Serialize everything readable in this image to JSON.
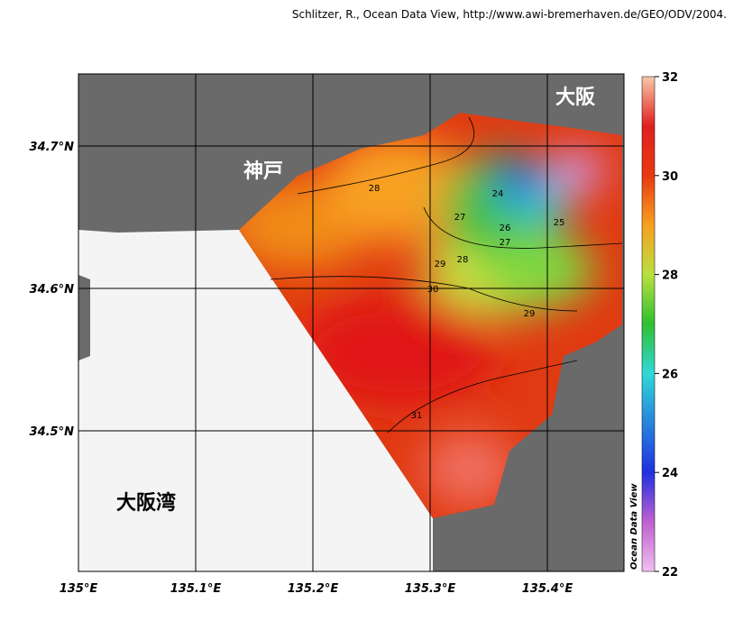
{
  "credit": "Schlitzer, R., Ocean Data View, http://www.awi-bremerhaven.de/GEO/ODV/2004.",
  "watermark": "Ocean Data View",
  "places": [
    "大阪",
    "神戸",
    "大阪湾"
  ],
  "lon_ticks": [
    "135°E",
    "135.1°E",
    "135.2°E",
    "135.3°E",
    "135.4°E"
  ],
  "lat_ticks": [
    "34.7°N",
    "34.6°N",
    "34.5°N"
  ],
  "colorbar_ticks": [
    32,
    30,
    28,
    26,
    24,
    22
  ],
  "contour_labels": [
    "28",
    "24",
    "27",
    "26",
    "25",
    "27",
    "28",
    "29",
    "30",
    "29",
    "31"
  ]
}
